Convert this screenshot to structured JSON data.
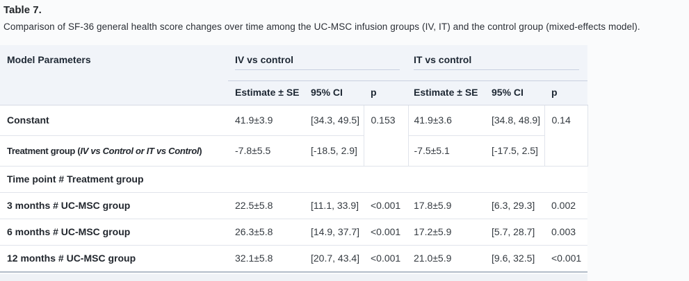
{
  "page": {
    "title": "Table 7.",
    "caption": "Comparison of SF-36 general health score changes over time among the UC-MSC infusion groups (IV, IT) and the control group (mixed-effects model)."
  },
  "table": {
    "col_header": "Model Parameters",
    "groups": [
      {
        "label": "IV vs control"
      },
      {
        "label": "IT vs control"
      }
    ],
    "sub_headers": {
      "estimate": "Estimate ± SE",
      "ci": "95% CI",
      "p": "p"
    },
    "rows": {
      "constant": {
        "label": "Constant",
        "iv": {
          "estimate": "41.9±3.9",
          "ci": "[34.3, 49.5]",
          "p": "0.153"
        },
        "it": {
          "estimate": "41.9±3.6",
          "ci": "[34.8, 48.9]",
          "p": "0.14"
        }
      },
      "treatment": {
        "label_prefix": "Treatment group (",
        "label_italic": "IV vs Control or IT vs Control",
        "label_suffix": ")",
        "iv": {
          "estimate": "-7.8±5.5",
          "ci": "[-18.5, 2.9]"
        },
        "it": {
          "estimate": "-7.5±5.1",
          "ci": "[-17.5, 2.5]"
        }
      },
      "section": {
        "label": "Time point # Treatment group"
      },
      "m3": {
        "label": "3 months # UC-MSC group",
        "iv": {
          "estimate": "22.5±5.8",
          "ci": "[11.1, 33.9]",
          "p": "<0.001"
        },
        "it": {
          "estimate": "17.8±5.9",
          "ci": "[6.3, 29.3]",
          "p": "0.002"
        }
      },
      "m6": {
        "label": "6 months # UC-MSC group",
        "iv": {
          "estimate": "26.3±5.8",
          "ci": "[14.9, 37.7]",
          "p": "<0.001"
        },
        "it": {
          "estimate": "17.2±5.9",
          "ci": "[5.7, 28.7]",
          "p": "0.003"
        }
      },
      "m12": {
        "label": "12 months # UC-MSC group",
        "iv": {
          "estimate": "32.1±5.8",
          "ci": "[20.7, 43.4]",
          "p": "<0.001"
        },
        "it": {
          "estimate": "21.0±5.9",
          "ci": "[9.6, 32.5]",
          "p": "<0.001"
        }
      }
    }
  },
  "colors": {
    "page_bg": "#fafbfc",
    "header_bg": "#f1f4f9",
    "header_text": "#1d2733",
    "title_color": "#212529",
    "text_color": "#2b2f36",
    "label_color": "#22272e",
    "num_color": "#343a40",
    "underline": "#c9d0e0",
    "header_border": "#d6dbe4",
    "row_border": "#e0e4eb",
    "bottom_border": "#b3bdc9",
    "band_bg": "#eff2f6"
  }
}
